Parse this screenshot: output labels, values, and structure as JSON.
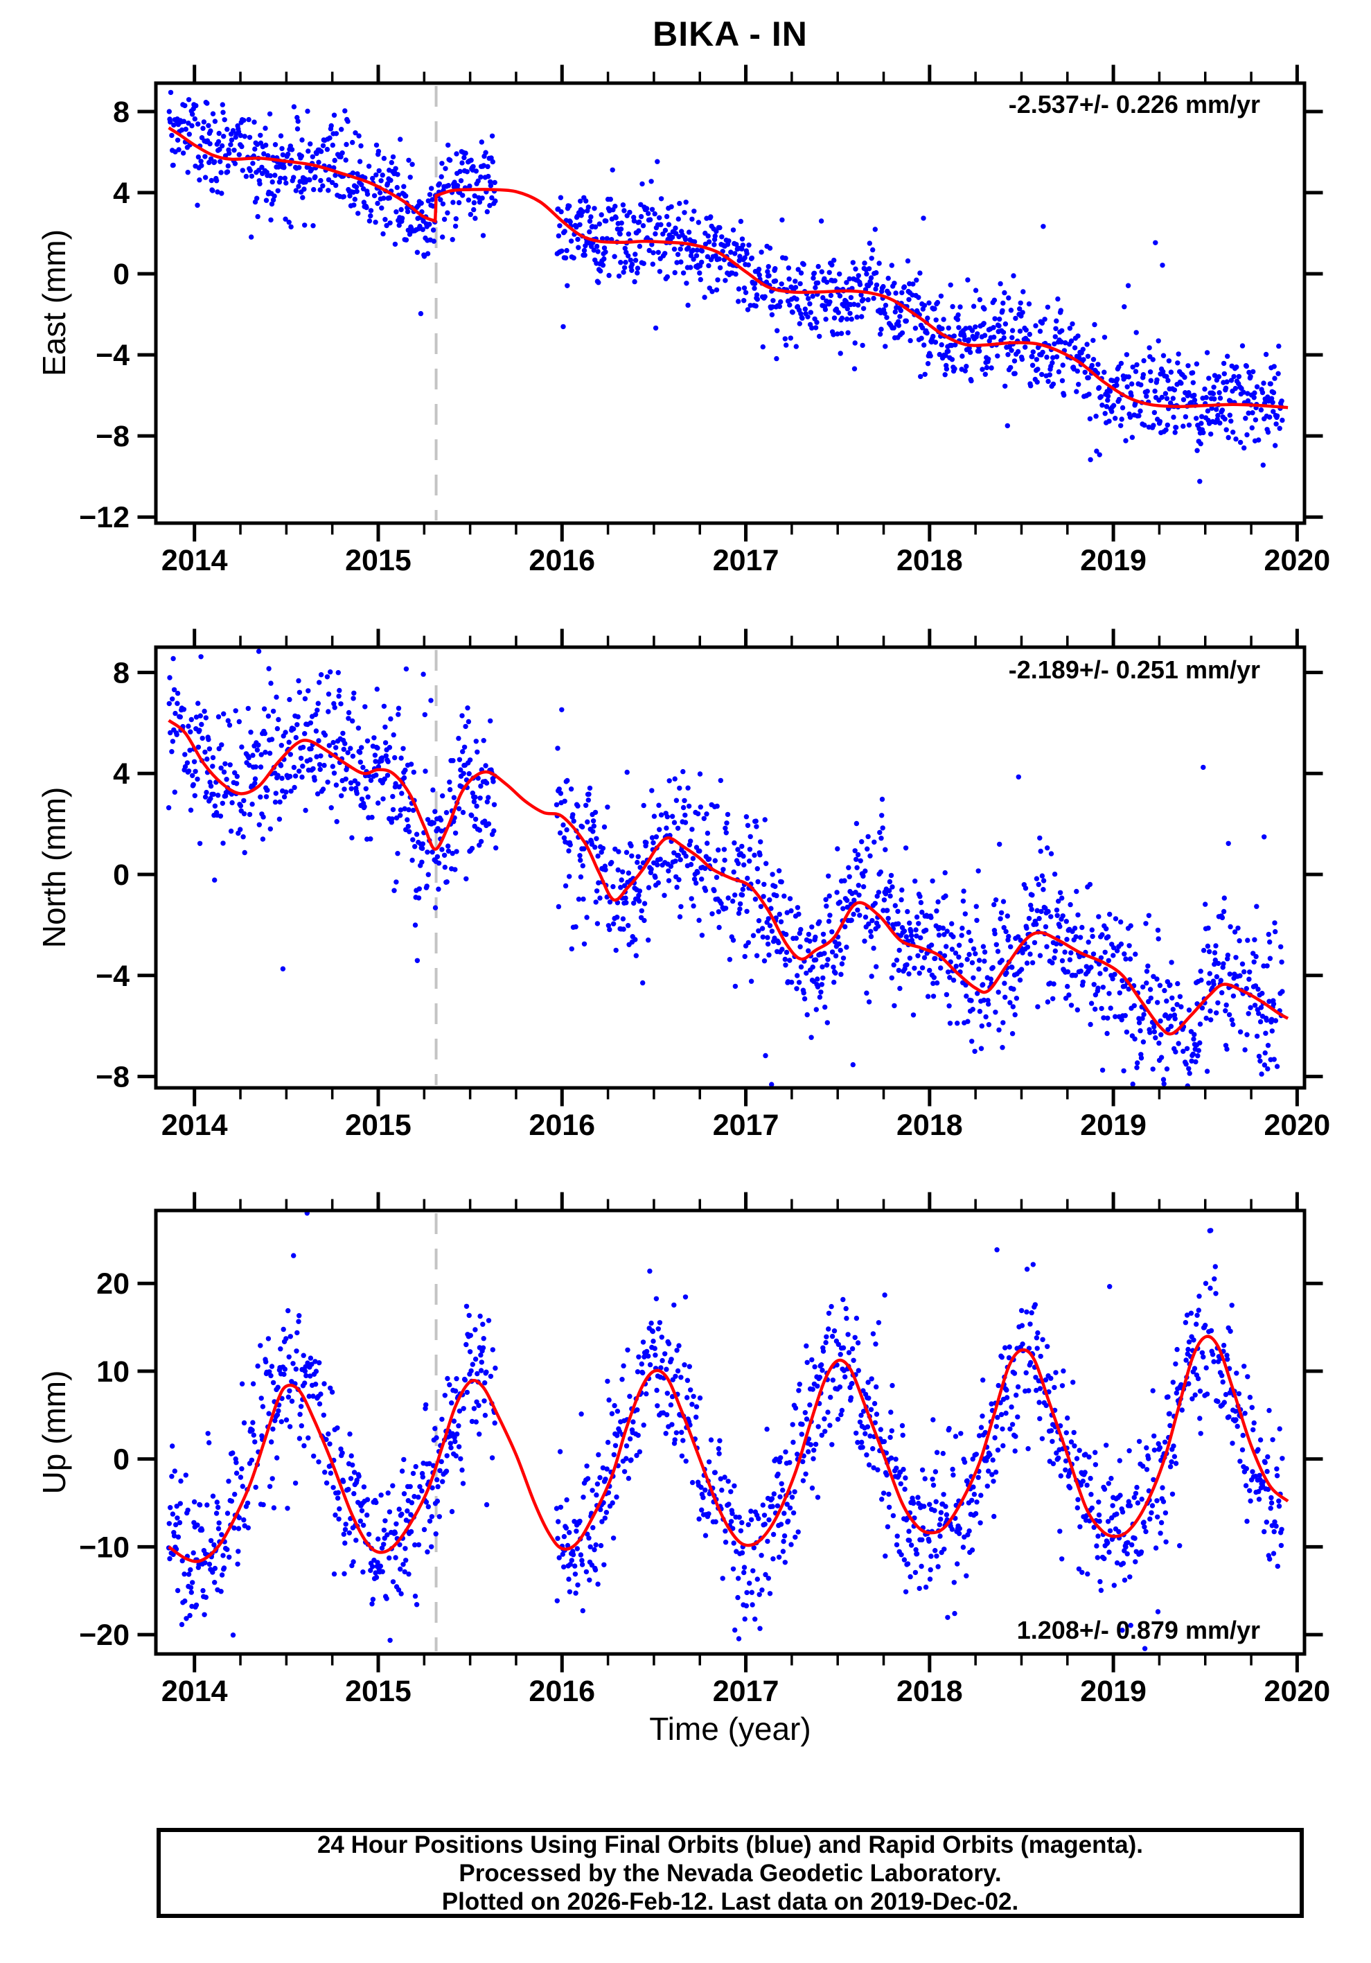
{
  "chart_data": {
    "type": "scatter",
    "title": "BIKA - IN",
    "xlabel": "Time (year)",
    "x_range": [
      2013.79,
      2020.04
    ],
    "x_ticks": [
      2014,
      2015,
      2016,
      2017,
      2018,
      2019,
      2020
    ],
    "x_minor_tick_interval": 0.25,
    "data_span": [
      2013.86,
      2019.92
    ],
    "data_gaps": [
      [
        2015.64,
        2015.97
      ]
    ],
    "event_line_x": 2015.315,
    "colors": {
      "points": "#0000ff",
      "model_line": "#ff0000",
      "event_line": "#c4c4c4",
      "frame": "#000000"
    },
    "legend_note": "blue = Final Orbits, magenta = Rapid Orbits",
    "panels": [
      {
        "id": "east",
        "ylabel": "East (mm)",
        "annotation": "-2.537+/- 0.226 mm/yr",
        "annotation_pos": "top-right",
        "y_range": [
          -12.3,
          9.4
        ],
        "y_ticks": [
          -12,
          -8,
          -4,
          0,
          4,
          8
        ],
        "noise_sd": 1.3,
        "seed": 20141,
        "model_segments": [
          [
            [
              2013.86,
              7.2
            ],
            [
              2013.92,
              6.85
            ],
            [
              2014.0,
              6.35
            ],
            [
              2014.1,
              5.85
            ],
            [
              2014.2,
              5.65
            ],
            [
              2014.35,
              5.7
            ],
            [
              2014.5,
              5.55
            ],
            [
              2014.65,
              5.35
            ],
            [
              2014.8,
              4.95
            ],
            [
              2014.95,
              4.5
            ],
            [
              2015.05,
              4.05
            ],
            [
              2015.15,
              3.5
            ],
            [
              2015.24,
              2.85
            ],
            [
              2015.31,
              2.6
            ]
          ],
          [
            [
              2015.315,
              3.85
            ],
            [
              2015.4,
              4.1
            ],
            [
              2015.5,
              4.15
            ],
            [
              2015.62,
              4.15
            ],
            [
              2015.75,
              4.05
            ],
            [
              2015.88,
              3.55
            ],
            [
              2016.0,
              2.6
            ],
            [
              2016.1,
              1.9
            ],
            [
              2016.2,
              1.6
            ],
            [
              2016.33,
              1.55
            ],
            [
              2016.45,
              1.6
            ],
            [
              2016.58,
              1.55
            ],
            [
              2016.7,
              1.45
            ],
            [
              2016.85,
              1.05
            ],
            [
              2017.0,
              0.1
            ],
            [
              2017.12,
              -0.65
            ],
            [
              2017.25,
              -0.9
            ],
            [
              2017.4,
              -0.9
            ],
            [
              2017.55,
              -0.85
            ],
            [
              2017.68,
              -0.95
            ],
            [
              2017.8,
              -1.3
            ],
            [
              2017.95,
              -2.2
            ],
            [
              2018.08,
              -3.05
            ],
            [
              2018.2,
              -3.5
            ],
            [
              2018.32,
              -3.5
            ],
            [
              2018.45,
              -3.4
            ],
            [
              2018.58,
              -3.45
            ],
            [
              2018.7,
              -3.8
            ],
            [
              2018.82,
              -4.4
            ],
            [
              2018.95,
              -5.35
            ],
            [
              2019.08,
              -6.1
            ],
            [
              2019.2,
              -6.45
            ],
            [
              2019.35,
              -6.55
            ],
            [
              2019.5,
              -6.5
            ],
            [
              2019.65,
              -6.45
            ],
            [
              2019.8,
              -6.5
            ],
            [
              2019.95,
              -6.6
            ]
          ]
        ]
      },
      {
        "id": "north",
        "ylabel": "North (mm)",
        "annotation": "-2.189+/- 0.251 mm/yr",
        "annotation_pos": "top-right",
        "y_range": [
          -8.45,
          9.0
        ],
        "y_ticks": [
          -8,
          -4,
          0,
          4,
          8
        ],
        "noise_sd": 1.5,
        "seed": 20152,
        "model_segments": [
          [
            [
              2013.86,
              6.1
            ],
            [
              2013.95,
              5.6
            ],
            [
              2014.05,
              4.4
            ],
            [
              2014.15,
              3.6
            ],
            [
              2014.25,
              3.2
            ],
            [
              2014.35,
              3.5
            ],
            [
              2014.45,
              4.4
            ],
            [
              2014.55,
              5.15
            ],
            [
              2014.62,
              5.3
            ],
            [
              2014.72,
              4.9
            ],
            [
              2014.82,
              4.4
            ],
            [
              2014.92,
              4.0
            ],
            [
              2015.0,
              4.15
            ],
            [
              2015.08,
              4.0
            ],
            [
              2015.17,
              3.2
            ],
            [
              2015.25,
              1.9
            ],
            [
              2015.31,
              1.0
            ],
            [
              2015.38,
              1.9
            ],
            [
              2015.45,
              3.2
            ],
            [
              2015.52,
              3.85
            ],
            [
              2015.6,
              4.05
            ],
            [
              2015.7,
              3.55
            ],
            [
              2015.8,
              2.9
            ],
            [
              2015.9,
              2.45
            ],
            [
              2016.0,
              2.3
            ],
            [
              2016.12,
              1.3
            ],
            [
              2016.2,
              0.1
            ],
            [
              2016.28,
              -1.0
            ],
            [
              2016.36,
              -0.5
            ],
            [
              2016.44,
              0.2
            ],
            [
              2016.52,
              1.1
            ],
            [
              2016.58,
              1.45
            ],
            [
              2016.66,
              1.1
            ],
            [
              2016.74,
              0.7
            ],
            [
              2016.82,
              0.2
            ],
            [
              2016.92,
              -0.15
            ],
            [
              2017.02,
              -0.45
            ],
            [
              2017.12,
              -1.4
            ],
            [
              2017.22,
              -2.75
            ],
            [
              2017.3,
              -3.35
            ],
            [
              2017.38,
              -3.0
            ],
            [
              2017.48,
              -2.5
            ],
            [
              2017.6,
              -1.15
            ],
            [
              2017.72,
              -1.6
            ],
            [
              2017.84,
              -2.6
            ],
            [
              2017.95,
              -2.9
            ],
            [
              2018.05,
              -3.2
            ],
            [
              2018.15,
              -3.9
            ],
            [
              2018.25,
              -4.5
            ],
            [
              2018.32,
              -4.6
            ],
            [
              2018.42,
              -3.6
            ],
            [
              2018.52,
              -2.6
            ],
            [
              2018.6,
              -2.3
            ],
            [
              2018.7,
              -2.6
            ],
            [
              2018.82,
              -3.1
            ],
            [
              2018.95,
              -3.5
            ],
            [
              2019.05,
              -4.0
            ],
            [
              2019.15,
              -5.0
            ],
            [
              2019.25,
              -6.0
            ],
            [
              2019.32,
              -6.3
            ],
            [
              2019.42,
              -5.6
            ],
            [
              2019.52,
              -4.8
            ],
            [
              2019.6,
              -4.35
            ],
            [
              2019.7,
              -4.6
            ],
            [
              2019.8,
              -5.0
            ],
            [
              2019.9,
              -5.5
            ],
            [
              2019.95,
              -5.7
            ]
          ]
        ]
      },
      {
        "id": "up",
        "ylabel": "Up (mm)",
        "annotation": "1.208+/- 0.879 mm/yr",
        "annotation_pos": "bottom-right",
        "y_range": [
          -22.2,
          28.3
        ],
        "y_ticks": [
          -20,
          -10,
          0,
          10,
          20
        ],
        "noise_sd": 4.5,
        "seed": 20163,
        "model_segments": [
          [
            [
              2013.86,
              -10.0
            ],
            [
              2013.95,
              -11.3
            ],
            [
              2014.03,
              -11.6
            ],
            [
              2014.12,
              -10.2
            ],
            [
              2014.2,
              -7.5
            ],
            [
              2014.3,
              -3.0
            ],
            [
              2014.38,
              2.0
            ],
            [
              2014.45,
              6.5
            ],
            [
              2014.5,
              8.3
            ],
            [
              2014.57,
              7.8
            ],
            [
              2014.65,
              4.5
            ],
            [
              2014.75,
              -0.5
            ],
            [
              2014.85,
              -6.0
            ],
            [
              2014.93,
              -9.3
            ],
            [
              2015.0,
              -10.6
            ],
            [
              2015.08,
              -10.0
            ],
            [
              2015.17,
              -7.5
            ],
            [
              2015.27,
              -3.5
            ],
            [
              2015.35,
              1.5
            ],
            [
              2015.42,
              6.0
            ],
            [
              2015.5,
              8.8
            ],
            [
              2015.57,
              8.2
            ],
            [
              2015.65,
              5.0
            ],
            [
              2015.75,
              0.5
            ],
            [
              2015.85,
              -5.0
            ],
            [
              2015.93,
              -8.5
            ],
            [
              2016.0,
              -10.2
            ],
            [
              2016.08,
              -9.6
            ],
            [
              2016.17,
              -6.5
            ],
            [
              2016.27,
              -2.0
            ],
            [
              2016.35,
              3.5
            ],
            [
              2016.43,
              8.0
            ],
            [
              2016.5,
              10.0
            ],
            [
              2016.57,
              9.3
            ],
            [
              2016.65,
              5.5
            ],
            [
              2016.75,
              0.0
            ],
            [
              2016.85,
              -5.5
            ],
            [
              2016.93,
              -8.6
            ],
            [
              2017.0,
              -9.8
            ],
            [
              2017.08,
              -9.2
            ],
            [
              2017.17,
              -6.5
            ],
            [
              2017.27,
              -1.5
            ],
            [
              2017.35,
              4.0
            ],
            [
              2017.43,
              9.0
            ],
            [
              2017.5,
              11.2
            ],
            [
              2017.57,
              10.2
            ],
            [
              2017.65,
              6.0
            ],
            [
              2017.75,
              0.5
            ],
            [
              2017.85,
              -5.0
            ],
            [
              2017.93,
              -7.6
            ],
            [
              2018.0,
              -8.4
            ],
            [
              2018.08,
              -7.8
            ],
            [
              2018.17,
              -5.0
            ],
            [
              2018.27,
              -0.5
            ],
            [
              2018.35,
              5.0
            ],
            [
              2018.43,
              10.5
            ],
            [
              2018.5,
              12.4
            ],
            [
              2018.57,
              11.3
            ],
            [
              2018.65,
              6.5
            ],
            [
              2018.75,
              0.5
            ],
            [
              2018.85,
              -5.5
            ],
            [
              2018.93,
              -8.0
            ],
            [
              2019.0,
              -8.8
            ],
            [
              2019.08,
              -8.2
            ],
            [
              2019.17,
              -5.5
            ],
            [
              2019.27,
              -0.5
            ],
            [
              2019.35,
              5.5
            ],
            [
              2019.43,
              11.5
            ],
            [
              2019.5,
              13.9
            ],
            [
              2019.57,
              12.8
            ],
            [
              2019.65,
              8.0
            ],
            [
              2019.75,
              1.5
            ],
            [
              2019.85,
              -3.0
            ],
            [
              2019.95,
              -4.8
            ]
          ]
        ]
      }
    ]
  },
  "footer": {
    "lines": [
      "24 Hour Positions Using Final Orbits (blue) and Rapid Orbits (magenta).",
      "Processed by the Nevada Geodetic Laboratory.",
      "Plotted on 2026-Feb-12. Last data on 2019-Dec-02."
    ]
  }
}
